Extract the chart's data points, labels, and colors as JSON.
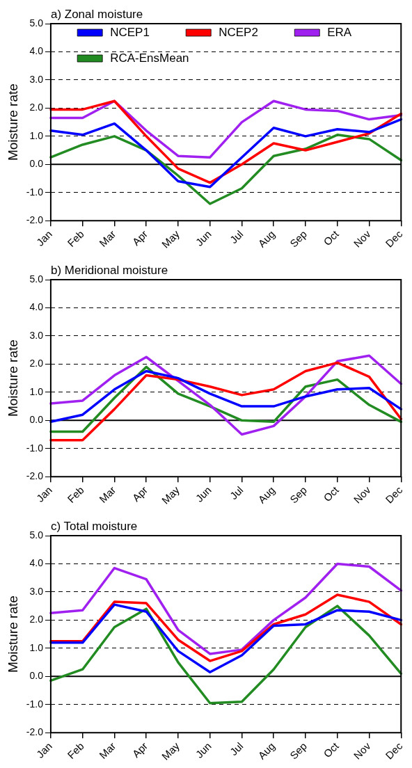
{
  "chart_data": [
    {
      "type": "line",
      "title": "a) Zonal moisture",
      "ylabel": "Moisture rate",
      "categories": [
        "Jan",
        "Feb",
        "Mar",
        "Apr",
        "May",
        "Jun",
        "Jul",
        "Aug",
        "Sep",
        "Oct",
        "Nov",
        "Dec"
      ],
      "series": [
        {
          "name": "NCEP1",
          "color": "#0000ff",
          "values": [
            1.2,
            1.05,
            1.45,
            0.5,
            -0.6,
            -0.8,
            0.25,
            1.3,
            1.0,
            1.25,
            1.15,
            1.6
          ]
        },
        {
          "name": "NCEP2",
          "color": "#ff0000",
          "values": [
            1.95,
            1.95,
            2.25,
            1.0,
            -0.15,
            -0.65,
            0.0,
            0.75,
            0.5,
            0.8,
            1.1,
            1.8
          ]
        },
        {
          "name": "ERA",
          "color": "#a020f0",
          "values": [
            1.65,
            1.65,
            2.25,
            1.2,
            0.3,
            0.25,
            1.5,
            2.25,
            1.95,
            1.9,
            1.6,
            1.75
          ]
        },
        {
          "name": "RCA-EnsMean",
          "color": "#228b22",
          "values": [
            0.25,
            0.7,
            1.0,
            0.5,
            -0.4,
            -1.4,
            -0.85,
            0.3,
            0.55,
            1.05,
            0.9,
            0.15
          ]
        }
      ],
      "ylim": [
        -2,
        5
      ],
      "yticks": [
        {
          "value": -2,
          "label": "-2.0"
        },
        {
          "value": -1,
          "label": "-1.0"
        },
        {
          "value": 0,
          "label": "0.0"
        },
        {
          "value": 1,
          "label": "1.0"
        },
        {
          "value": 2,
          "label": "2.0"
        },
        {
          "value": 3,
          "label": "3.0"
        },
        {
          "value": 4,
          "label": "4.0"
        },
        {
          "value": 5,
          "label": "5.0"
        }
      ],
      "ref_lines": [
        {
          "axis": "y",
          "value": 0,
          "color": "#000000",
          "line_style": "solid"
        }
      ],
      "grid": "y",
      "legend": "top",
      "marker": "none",
      "line_style": "solid"
    },
    {
      "type": "line",
      "title": "b) Meridional moisture",
      "ylabel": "Moisture rate",
      "categories": [
        "Jan",
        "Feb",
        "Mar",
        "Apr",
        "May",
        "Jun",
        "Jul",
        "Aug",
        "Sep",
        "Oct",
        "Nov",
        "Dec"
      ],
      "series": [
        {
          "color": "#0000ff",
          "values": [
            -0.05,
            0.2,
            1.1,
            1.75,
            1.5,
            0.95,
            0.5,
            0.5,
            0.85,
            1.1,
            1.15,
            0.4
          ]
        },
        {
          "color": "#ff0000",
          "values": [
            -0.7,
            -0.7,
            0.4,
            1.6,
            1.45,
            1.2,
            0.9,
            1.1,
            1.75,
            2.05,
            1.55,
            0.05
          ]
        },
        {
          "color": "#a020f0",
          "values": [
            0.6,
            0.7,
            1.6,
            2.25,
            1.4,
            0.55,
            -0.5,
            -0.2,
            0.85,
            2.1,
            2.3,
            1.3
          ]
        },
        {
          "color": "#228b22",
          "values": [
            -0.4,
            -0.4,
            0.8,
            1.9,
            0.95,
            0.5,
            0.0,
            -0.05,
            1.2,
            1.45,
            0.55,
            -0.05
          ]
        }
      ],
      "ylim": [
        -2,
        5
      ],
      "yticks": [
        {
          "value": -2,
          "label": "-2.0"
        },
        {
          "value": -1,
          "label": "-1.0"
        },
        {
          "value": 0,
          "label": "0.0"
        },
        {
          "value": 1,
          "label": "1.0"
        },
        {
          "value": 2,
          "label": "2.0"
        },
        {
          "value": 3,
          "label": "3.0"
        },
        {
          "value": 4,
          "label": "4.0"
        },
        {
          "value": 5,
          "label": "5.0"
        }
      ],
      "ref_lines": [
        {
          "axis": "y",
          "value": 0,
          "color": "#000000",
          "line_style": "solid"
        }
      ],
      "grid": "y",
      "marker": "none",
      "line_style": "solid"
    },
    {
      "type": "line",
      "title": "c) Total moisture",
      "ylabel": "Moisture rate",
      "categories": [
        "Jan",
        "Feb",
        "Mar",
        "Apr",
        "May",
        "Jun",
        "Jul",
        "Aug",
        "Sep",
        "Oct",
        "Nov",
        "Dec"
      ],
      "series": [
        {
          "color": "#0000ff",
          "values": [
            1.2,
            1.2,
            2.55,
            2.3,
            0.9,
            0.15,
            0.75,
            1.8,
            1.85,
            2.35,
            2.3,
            2.0
          ]
        },
        {
          "color": "#ff0000",
          "values": [
            1.25,
            1.25,
            2.65,
            2.6,
            1.3,
            0.55,
            0.9,
            1.85,
            2.2,
            2.9,
            2.65,
            1.85
          ]
        },
        {
          "color": "#a020f0",
          "values": [
            2.25,
            2.35,
            3.85,
            3.45,
            1.65,
            0.8,
            0.95,
            2.0,
            2.8,
            4.0,
            3.9,
            3.05
          ]
        },
        {
          "color": "#228b22",
          "values": [
            -0.15,
            0.25,
            1.75,
            2.4,
            0.5,
            -0.95,
            -0.9,
            0.25,
            1.75,
            2.5,
            1.45,
            0.1
          ]
        }
      ],
      "ylim": [
        -2,
        5
      ],
      "yticks": [
        {
          "value": -2,
          "label": "-2.0"
        },
        {
          "value": -1,
          "label": "-1.0"
        },
        {
          "value": 0,
          "label": "0.0"
        },
        {
          "value": 1,
          "label": "1.0"
        },
        {
          "value": 2,
          "label": "2.0"
        },
        {
          "value": 3,
          "label": "3.0"
        },
        {
          "value": 4,
          "label": "4.0"
        },
        {
          "value": 5,
          "label": "5.0"
        }
      ],
      "ref_lines": [
        {
          "axis": "y",
          "value": 0,
          "color": "#000000",
          "line_style": "solid"
        }
      ],
      "grid": "y",
      "marker": "none",
      "line_style": "solid"
    }
  ]
}
